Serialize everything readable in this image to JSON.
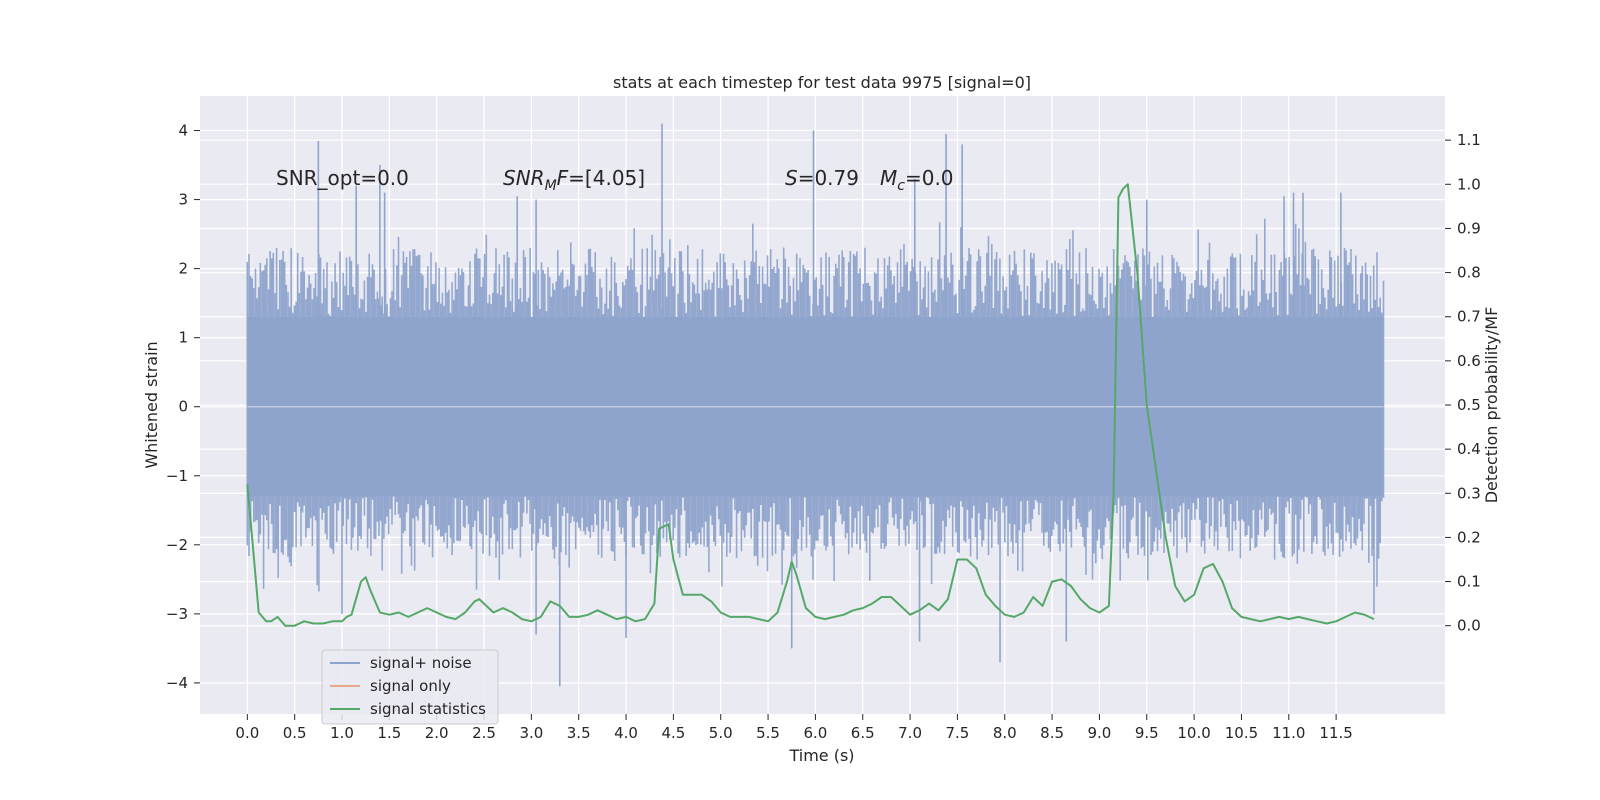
{
  "chart_data": {
    "type": "line",
    "title": "stats at each timestep for test data 9975 [signal=0]",
    "xlabel": "Time (s)",
    "ylabel_left": "Whitened strain",
    "ylabel_right": "Detection probability/MF",
    "xlim": [
      -0.5,
      12.65
    ],
    "ylim_left": [
      -4.45,
      4.5
    ],
    "ylim_right": [
      -0.2,
      1.2
    ],
    "x_ticks": [
      0.0,
      0.5,
      1.0,
      1.5,
      2.0,
      2.5,
      3.0,
      3.5,
      4.0,
      4.5,
      5.0,
      5.5,
      6.0,
      6.5,
      7.0,
      7.5,
      8.0,
      8.5,
      9.0,
      9.5,
      10.0,
      10.5,
      11.0,
      11.5
    ],
    "x_tick_labels": [
      "0.0",
      "0.5",
      "1.0",
      "1.5",
      "2.0",
      "2.5",
      "3.0",
      "3.5",
      "4.0",
      "4.5",
      "5.0",
      "5.5",
      "6.0",
      "6.5",
      "7.0",
      "7.5",
      "8.0",
      "8.5",
      "9.0",
      "9.5",
      "10.0",
      "10.5",
      "11.0",
      "11.5"
    ],
    "y_left_ticks": [
      4,
      3,
      2,
      1,
      0,
      -1,
      -2,
      -3,
      -4
    ],
    "y_left_tick_labels": [
      "4",
      "3",
      "2",
      "1",
      "0",
      "−1",
      "−2",
      "−3",
      "−4"
    ],
    "y_right_ticks": [
      1.1,
      1.0,
      0.9,
      0.8,
      0.7,
      0.6,
      0.5,
      0.4,
      0.3,
      0.2,
      0.1,
      0.0
    ],
    "y_right_tick_labels": [
      "1.1",
      "1.0",
      "0.9",
      "0.8",
      "0.7",
      "0.6",
      "0.5",
      "0.4",
      "0.3",
      "0.2",
      "0.1",
      "0.0"
    ],
    "noise_band": {
      "name": "signal+ noise",
      "t_start": 0.0,
      "t_end": 12.0,
      "typical_max": 2.3,
      "typical_min": -2.2,
      "spike_max": [
        [
          0.75,
          3.85
        ],
        [
          1.15,
          3.2
        ],
        [
          1.4,
          3.5
        ],
        [
          1.45,
          3.1
        ],
        [
          2.85,
          3.05
        ],
        [
          3.05,
          3.0
        ],
        [
          4.38,
          4.1
        ],
        [
          5.98,
          4.0
        ],
        [
          7.05,
          3.3
        ],
        [
          7.38,
          3.95
        ],
        [
          7.55,
          3.8
        ],
        [
          9.5,
          3.0
        ],
        [
          10.95,
          3.05
        ],
        [
          11.05,
          3.1
        ],
        [
          11.15,
          3.1
        ],
        [
          11.55,
          3.1
        ]
      ],
      "spike_min": [
        [
          3.3,
          -4.05
        ],
        [
          3.05,
          -3.3
        ],
        [
          4.0,
          -3.35
        ],
        [
          7.1,
          -3.4
        ],
        [
          7.95,
          -3.7
        ],
        [
          8.65,
          -3.4
        ],
        [
          5.75,
          -3.5
        ],
        [
          1.0,
          -3.0
        ],
        [
          11.9,
          -3.0
        ]
      ]
    },
    "series": [
      {
        "name": "signal statistics",
        "axis": "right",
        "color": "#55a868",
        "x": [
          0.0,
          0.05,
          0.12,
          0.2,
          0.25,
          0.32,
          0.4,
          0.5,
          0.6,
          0.7,
          0.8,
          0.9,
          1.0,
          1.05,
          1.1,
          1.2,
          1.25,
          1.3,
          1.4,
          1.5,
          1.6,
          1.7,
          1.8,
          1.9,
          2.0,
          2.1,
          2.2,
          2.3,
          2.4,
          2.45,
          2.5,
          2.6,
          2.7,
          2.8,
          2.9,
          3.0,
          3.1,
          3.2,
          3.3,
          3.4,
          3.5,
          3.6,
          3.7,
          3.8,
          3.9,
          4.0,
          4.1,
          4.2,
          4.3,
          4.35,
          4.4,
          4.45,
          4.5,
          4.6,
          4.7,
          4.8,
          4.9,
          5.0,
          5.1,
          5.2,
          5.3,
          5.4,
          5.5,
          5.6,
          5.7,
          5.75,
          5.8,
          5.9,
          6.0,
          6.1,
          6.2,
          6.3,
          6.4,
          6.5,
          6.6,
          6.7,
          6.8,
          6.9,
          7.0,
          7.1,
          7.2,
          7.3,
          7.4,
          7.5,
          7.6,
          7.7,
          7.8,
          7.9,
          8.0,
          8.1,
          8.2,
          8.3,
          8.4,
          8.5,
          8.6,
          8.7,
          8.8,
          8.9,
          9.0,
          9.1,
          9.15,
          9.2,
          9.25,
          9.3,
          9.4,
          9.5,
          9.6,
          9.7,
          9.8,
          9.9,
          10.0,
          10.1,
          10.2,
          10.3,
          10.4,
          10.5,
          10.6,
          10.7,
          10.8,
          10.9,
          11.0,
          11.1,
          11.2,
          11.3,
          11.4,
          11.5,
          11.6,
          11.7,
          11.8,
          11.9
        ],
        "y": [
          0.32,
          0.2,
          0.03,
          0.01,
          0.01,
          0.02,
          0.0,
          0.0,
          0.01,
          0.005,
          0.005,
          0.01,
          0.01,
          0.02,
          0.025,
          0.1,
          0.11,
          0.08,
          0.03,
          0.025,
          0.03,
          0.02,
          0.03,
          0.04,
          0.03,
          0.02,
          0.015,
          0.03,
          0.055,
          0.06,
          0.05,
          0.03,
          0.04,
          0.03,
          0.015,
          0.01,
          0.02,
          0.055,
          0.045,
          0.02,
          0.02,
          0.025,
          0.035,
          0.025,
          0.015,
          0.02,
          0.01,
          0.015,
          0.05,
          0.22,
          0.225,
          0.23,
          0.15,
          0.07,
          0.07,
          0.07,
          0.055,
          0.03,
          0.02,
          0.02,
          0.02,
          0.015,
          0.01,
          0.03,
          0.1,
          0.145,
          0.115,
          0.04,
          0.02,
          0.015,
          0.02,
          0.025,
          0.035,
          0.04,
          0.05,
          0.065,
          0.065,
          0.045,
          0.025,
          0.035,
          0.05,
          0.035,
          0.06,
          0.15,
          0.15,
          0.13,
          0.07,
          0.045,
          0.025,
          0.02,
          0.03,
          0.065,
          0.045,
          0.1,
          0.105,
          0.09,
          0.06,
          0.04,
          0.03,
          0.045,
          0.3,
          0.97,
          0.99,
          1.0,
          0.8,
          0.5,
          0.35,
          0.2,
          0.09,
          0.055,
          0.07,
          0.13,
          0.14,
          0.1,
          0.04,
          0.02,
          0.015,
          0.01,
          0.015,
          0.02,
          0.015,
          0.02,
          0.015,
          0.01,
          0.005,
          0.01,
          0.02,
          0.03,
          0.025,
          0.015
        ]
      }
    ],
    "legend": [
      {
        "label": "signal+ noise",
        "color": "#8fa4cc"
      },
      {
        "label": "signal only",
        "color": "#e8a88b"
      },
      {
        "label": "signal statistics",
        "color": "#55a868"
      }
    ],
    "legend_position": "lower-left",
    "annotations": {
      "snr_opt": "SNR_opt=0.0",
      "snr_mf_name": "SNR",
      "snr_mf_sub": "M",
      "snr_mf_name2": "F",
      "snr_mf_value": "=[4.05]",
      "s_name": "S",
      "s_value": "=0.79",
      "mc_name": "M",
      "mc_sub": "c",
      "mc_value": "=0.0"
    },
    "colors": {
      "axes_bg": "#eaeaf2",
      "grid": "#ffffff",
      "noise": "#8fa4cc",
      "signal_only": "#e8a88b",
      "stats": "#55a868"
    }
  }
}
